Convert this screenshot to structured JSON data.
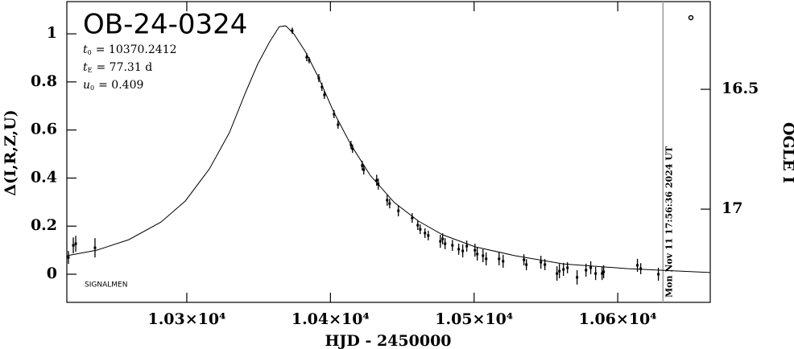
{
  "chart_data": {
    "type": "scatter",
    "title": "OB-24-0324",
    "parameters": [
      {
        "symbol": "t",
        "sub": "0",
        "text": "= 10370.2412"
      },
      {
        "symbol": "t",
        "sub": "E",
        "text": "= 77.31 d"
      },
      {
        "symbol": "u",
        "sub": "0",
        "text": "= 0.409"
      }
    ],
    "footnote": "SIGNALMEN",
    "x_label": "HJD - 2450000",
    "y_label": "Δ(I,R,Z,U)",
    "y2_label": "OGLE I",
    "xlim": [
      10216.5,
      10664.4
    ],
    "xticks": [
      {
        "value": 10300,
        "label": "1.03×10⁴"
      },
      {
        "value": 10400,
        "label": "1.04×10⁴"
      },
      {
        "value": 10500,
        "label": "1.05×10⁴"
      },
      {
        "value": 10600,
        "label": "1.06×10⁴"
      }
    ],
    "ylim": [
      -0.117,
      1.134
    ],
    "yticks": [
      0,
      0.2,
      0.4,
      0.6,
      0.8,
      1
    ],
    "y2lim": [
      16.134,
      17.389
    ],
    "y2_inverted": true,
    "y2ticks": [
      16.5,
      17
    ],
    "marker_line": {
      "x": 10631.5,
      "label": "Mon Nov 11 17:56:36 2024 UT",
      "color": "#999999"
    },
    "series": [
      {
        "kind": "points",
        "color": "#000000",
        "x": [
          10217.6,
          10221.0,
          10222.7,
          10236.1,
          10373.4,
          10383.5,
          10385.2,
          10391.9,
          10394.1,
          10395.8,
          10402.5,
          10405.3,
          10414.3,
          10415.4,
          10422.1,
          10423.2,
          10432.2,
          10433.3,
          10439.5,
          10441.2,
          10447.3,
          10456.9,
          10460.8,
          10462.5,
          10465.8,
          10468.1,
          10476.5,
          10478.1,
          10479.8,
          10484.9,
          10489.3,
          10492.1,
          10494.9,
          10500.6,
          10502.2,
          10506.2,
          10508.4,
          10517.4,
          10520.2,
          10534.7,
          10536.4,
          10546.5,
          10549.3,
          10557.7,
          10559.4,
          10562.2,
          10565.0,
          10571.7,
          10577.9,
          10581.2,
          10584.6,
          10589.1,
          10590.2,
          10613.7,
          10616.0,
          10628.3
        ],
        "values": [
          0.07,
          0.12,
          0.127,
          0.11,
          1.013,
          0.903,
          0.89,
          0.816,
          0.779,
          0.746,
          0.666,
          0.622,
          0.538,
          0.522,
          0.452,
          0.435,
          0.391,
          0.375,
          0.308,
          0.294,
          0.264,
          0.234,
          0.204,
          0.187,
          0.171,
          0.161,
          0.137,
          0.147,
          0.127,
          0.12,
          0.104,
          0.097,
          0.117,
          0.1,
          0.084,
          0.077,
          0.064,
          0.064,
          0.054,
          0.06,
          0.04,
          0.05,
          0.04,
          0.003,
          0.013,
          0.02,
          0.027,
          -0.013,
          0.017,
          0.027,
          0.003,
          0.003,
          0.01,
          0.037,
          0.023,
          0
        ],
        "errors": [
          0.027,
          0.033,
          0.033,
          0.04,
          0.013,
          0.017,
          0.013,
          0.017,
          0.017,
          0.017,
          0.017,
          0.017,
          0.017,
          0.017,
          0.02,
          0.02,
          0.023,
          0.023,
          0.023,
          0.02,
          0.023,
          0.02,
          0.02,
          0.02,
          0.02,
          0.02,
          0.027,
          0.023,
          0.023,
          0.023,
          0.023,
          0.027,
          0.023,
          0.027,
          0.027,
          0.027,
          0.027,
          0.027,
          0.027,
          0.023,
          0.023,
          0.027,
          0.023,
          0.03,
          0.03,
          0.027,
          0.023,
          0.03,
          0.027,
          0.027,
          0.027,
          0.027,
          0.027,
          0.027,
          0.023,
          0.027
        ]
      },
      {
        "kind": "line",
        "color": "#000000",
        "x": [
          10216.5,
          10237.3,
          10259.7,
          10282.1,
          10298.9,
          10315.7,
          10329.7,
          10340.9,
          10349.3,
          10357.7,
          10364.4,
          10368.9,
          10374.5,
          10382.9,
          10391.9,
          10402.5,
          10414.3,
          10427.7,
          10444.5,
          10461.3,
          10478.2,
          10500.6,
          10528.6,
          10562.2,
          10607.0,
          10664.1
        ],
        "values": [
          0.077,
          0.1,
          0.144,
          0.217,
          0.304,
          0.438,
          0.589,
          0.756,
          0.873,
          0.967,
          1.03,
          1.033,
          1.0,
          0.923,
          0.816,
          0.672,
          0.538,
          0.411,
          0.298,
          0.221,
          0.164,
          0.114,
          0.077,
          0.043,
          0.023,
          0.007
        ]
      }
    ]
  }
}
